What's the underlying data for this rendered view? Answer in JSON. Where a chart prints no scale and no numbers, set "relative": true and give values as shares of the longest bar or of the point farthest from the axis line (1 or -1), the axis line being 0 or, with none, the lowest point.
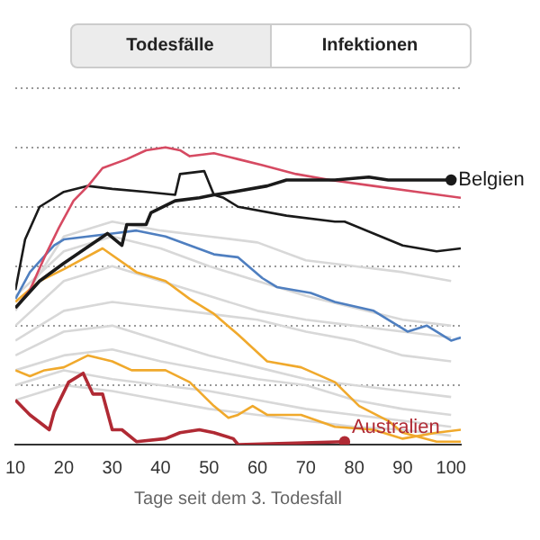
{
  "chart_data": {
    "type": "line",
    "relative": true,
    "grid": "y",
    "legend": false,
    "marker": "none",
    "xlabel": "Tage seit dem 3. Todesfall",
    "annotations": [
      "Todesfälle",
      "Infektionen"
    ],
    "xlim": [
      10,
      102
    ],
    "xticks": [
      10,
      20,
      30,
      40,
      50,
      60,
      70,
      80,
      90,
      100
    ],
    "series": [
      {
        "color": "#d8d8d8",
        "x": [
          10,
          20,
          30,
          40,
          50,
          60,
          70,
          80,
          90,
          100
        ],
        "values": [
          0.45,
          0.7,
          0.75,
          0.72,
          0.7,
          0.68,
          0.62,
          0.6,
          0.58,
          0.55
        ]
      },
      {
        "color": "#d8d8d8",
        "x": [
          10,
          20,
          30,
          40,
          50,
          60,
          70,
          80,
          90,
          100
        ],
        "values": [
          0.4,
          0.55,
          0.6,
          0.55,
          0.5,
          0.45,
          0.42,
          0.4,
          0.38,
          0.36
        ]
      },
      {
        "color": "#d8d8d8",
        "x": [
          10,
          20,
          30,
          40,
          50,
          60,
          70,
          80,
          90,
          100
        ],
        "values": [
          0.35,
          0.45,
          0.48,
          0.46,
          0.44,
          0.42,
          0.38,
          0.35,
          0.3,
          0.28
        ]
      },
      {
        "color": "#d8d8d8",
        "x": [
          10,
          20,
          30,
          40,
          50,
          60,
          70,
          80,
          90,
          100
        ],
        "values": [
          0.3,
          0.38,
          0.4,
          0.35,
          0.3,
          0.26,
          0.22,
          0.2,
          0.18,
          0.16
        ]
      },
      {
        "color": "#d8d8d8",
        "x": [
          10,
          20,
          30,
          40,
          50,
          60,
          70,
          80,
          90,
          100
        ],
        "values": [
          0.25,
          0.3,
          0.32,
          0.28,
          0.25,
          0.22,
          0.2,
          0.15,
          0.12,
          0.1
        ]
      },
      {
        "color": "#d8d8d8",
        "x": [
          10,
          20,
          30,
          40,
          50,
          60,
          70,
          80,
          90,
          100
        ],
        "values": [
          0.2,
          0.25,
          0.22,
          0.2,
          0.18,
          0.15,
          0.12,
          0.1,
          0.08,
          0.06
        ]
      },
      {
        "color": "#d8d8d8",
        "x": [
          10,
          20,
          30,
          40,
          50,
          60,
          70,
          80,
          90,
          100
        ],
        "values": [
          0.15,
          0.2,
          0.18,
          0.15,
          0.12,
          0.1,
          0.08,
          0.06,
          0.05,
          0.03
        ]
      },
      {
        "color": "#d8d8d8",
        "x": [
          10,
          20,
          30,
          40,
          50,
          60,
          70,
          80,
          90,
          100
        ],
        "values": [
          0.5,
          0.65,
          0.7,
          0.66,
          0.6,
          0.55,
          0.5,
          0.46,
          0.42,
          0.4
        ]
      },
      {
        "color": "#f0a92c",
        "x": [
          10,
          13,
          16,
          20,
          25,
          30,
          34,
          41,
          46,
          51,
          54,
          56,
          59,
          62,
          69,
          76,
          84,
          90,
          97,
          102
        ],
        "values": [
          0.25,
          0.23,
          0.25,
          0.26,
          0.3,
          0.28,
          0.25,
          0.25,
          0.21,
          0.13,
          0.09,
          0.1,
          0.13,
          0.1,
          0.1,
          0.06,
          0.05,
          0.02,
          0.04,
          0.05
        ]
      },
      {
        "color": "#f0a92c",
        "x": [
          10,
          15,
          20,
          28,
          35,
          41,
          46,
          51,
          56,
          62,
          69,
          76,
          81,
          87,
          90,
          97,
          102
        ],
        "values": [
          0.48,
          0.55,
          0.59,
          0.66,
          0.58,
          0.55,
          0.49,
          0.44,
          0.37,
          0.28,
          0.26,
          0.21,
          0.13,
          0.08,
          0.04,
          0.01,
          0.01
        ]
      },
      {
        "color": "#4f7fc0",
        "x": [
          10,
          13,
          18,
          20,
          25,
          30,
          35,
          41,
          51,
          56,
          61,
          64,
          71,
          76,
          84,
          91,
          95,
          100,
          102
        ],
        "values": [
          0.49,
          0.58,
          0.67,
          0.69,
          0.7,
          0.71,
          0.72,
          0.7,
          0.64,
          0.63,
          0.56,
          0.53,
          0.51,
          0.48,
          0.45,
          0.38,
          0.4,
          0.35,
          0.36
        ]
      },
      {
        "color": "#1a1a1a",
        "x": [
          10,
          12,
          15,
          20,
          25,
          30,
          37,
          43,
          44,
          49,
          51,
          53,
          56,
          66,
          76,
          78,
          84,
          90,
          97,
          102
        ],
        "values": [
          0.52,
          0.69,
          0.8,
          0.85,
          0.87,
          0.86,
          0.85,
          0.84,
          0.91,
          0.92,
          0.84,
          0.83,
          0.8,
          0.77,
          0.75,
          0.75,
          0.71,
          0.67,
          0.65,
          0.66
        ]
      },
      {
        "color": "#d64a62",
        "x": [
          10,
          13,
          16,
          19,
          22,
          25,
          28,
          33,
          37,
          41,
          44,
          46,
          51,
          56,
          61,
          68,
          75,
          84,
          93,
          102
        ],
        "values": [
          0.46,
          0.52,
          0.63,
          0.73,
          0.82,
          0.87,
          0.93,
          0.96,
          0.99,
          1.0,
          0.99,
          0.97,
          0.98,
          0.96,
          0.94,
          0.91,
          0.89,
          0.87,
          0.85,
          0.83
        ]
      },
      {
        "name": "Australien",
        "color": "#b02a34",
        "x": [
          10,
          13,
          17,
          18,
          21,
          24,
          26,
          28,
          30,
          32,
          35,
          41,
          44,
          48,
          51,
          55,
          56,
          78
        ],
        "values": [
          0.15,
          0.1,
          0.05,
          0.11,
          0.21,
          0.24,
          0.17,
          0.17,
          0.05,
          0.05,
          0.01,
          0.02,
          0.04,
          0.05,
          0.04,
          0.02,
          0,
          0.01
        ]
      },
      {
        "name": "Belgien",
        "color": "#1a1a1a",
        "x": [
          10,
          15,
          20,
          29,
          32,
          33,
          37,
          38,
          43,
          48,
          51,
          55,
          62,
          66,
          76,
          83,
          87,
          100
        ],
        "values": [
          0.46,
          0.55,
          0.61,
          0.71,
          0.67,
          0.74,
          0.74,
          0.78,
          0.82,
          0.83,
          0.84,
          0.85,
          0.87,
          0.89,
          0.89,
          0.9,
          0.89,
          0.89
        ]
      }
    ]
  }
}
